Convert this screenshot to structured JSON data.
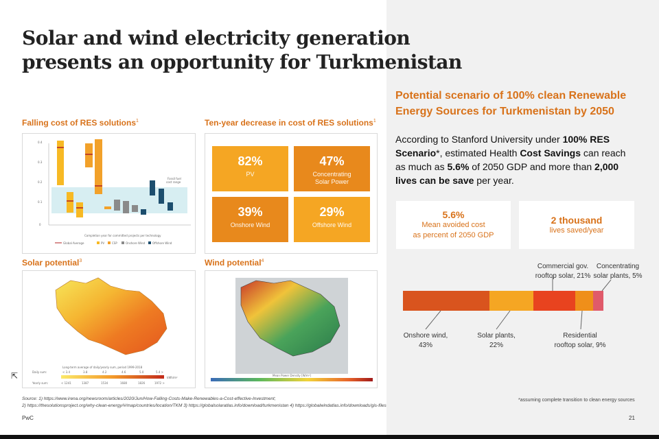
{
  "title": {
    "line1": "Solar and wind electricity generation",
    "line2": "presents an opportunity for Turkmenistan"
  },
  "panels": {
    "cost_falling": {
      "heading": "Falling cost of RES solutions",
      "sup": "1"
    },
    "ten_year": {
      "heading": "Ten-year decrease in cost of RES solutions",
      "sup": "1"
    },
    "solar": {
      "heading": "Solar potential",
      "sup": "3"
    },
    "wind": {
      "heading": "Wind potential",
      "sup": "4"
    }
  },
  "cost_chart": {
    "fossil_label_1": "Fossil fuel",
    "fossil_label_2": "cost range",
    "x_caption": "Completion year for committed projects per technology",
    "legend": [
      "Global Average",
      "PV",
      "CSP",
      "Onshore Wind",
      "Offshore Wind"
    ]
  },
  "tiles": [
    {
      "pct": "82%",
      "label1": "PV",
      "label2": "",
      "color": "#f5a623"
    },
    {
      "pct": "47%",
      "label1": "Concentrating",
      "label2": "Solar Power",
      "color": "#e8891c"
    },
    {
      "pct": "39%",
      "label1": "Onshore Wind",
      "label2": "",
      "color": "#e8891c"
    },
    {
      "pct": "29%",
      "label1": "Offshore Wind",
      "label2": "",
      "color": "#f5a623"
    }
  ],
  "solar_map": {
    "legend_caption": "Long-term average of daily/yearly sum, period 1999-2018",
    "daily_label": "Daily sum:",
    "yearly_label": "Yearly sum:",
    "unit": "kWh/m²",
    "daily_ticks": [
      "< 3.4",
      "3.8",
      "4.2",
      "4.6",
      "5.0",
      "5.4 >"
    ],
    "yearly_ticks": [
      "< 1241",
      "1387",
      "1534",
      "1680",
      "1826",
      "1972 >"
    ]
  },
  "wind_map": {
    "scale_caption": "Mean Power Density [W/m²]"
  },
  "scenario": {
    "title_line1": "Potential scenario of 100% clean Renewable",
    "title_line2": "Energy Sources for Turkmenistan by 2050",
    "body_1": "According to Stanford University under ",
    "body_b1": "100% RES Scenario",
    "body_2": "*, estimated Health ",
    "body_b2": "Cost Savings",
    "body_3": " can reach as much as ",
    "body_b3": "5.6%",
    "body_4": " of 2050 GDP and more than ",
    "body_b4": "2,000 lives can be save",
    "body_5": " per year."
  },
  "kpis": [
    {
      "value": "5.6%",
      "desc1": "Mean avoided cost",
      "desc2": "as percent of 2050 GDP"
    },
    {
      "value": "2 thousand",
      "desc1": "lives saved/year",
      "desc2": ""
    }
  ],
  "mix_bar": {
    "segments": [
      {
        "name": "Onshore wind",
        "pct": 43,
        "color": "#d9541e"
      },
      {
        "name": "Solar plants",
        "pct": 22,
        "color": "#f5a623"
      },
      {
        "name": "Commercial gov. rooftop solar",
        "pct": 21,
        "color": "#e8431f"
      },
      {
        "name": "Residential rooftop solar",
        "pct": 9,
        "color": "#ef8f1a"
      },
      {
        "name": "Concentrating solar plants",
        "pct": 5,
        "color": "#e05a6a"
      }
    ],
    "labels": {
      "onshore": [
        "Onshore wind,",
        "43%"
      ],
      "solar": [
        "Solar plants,",
        "22%"
      ],
      "commercial": [
        "Commercial gov.",
        "rooftop solar, 21%"
      ],
      "residential": [
        "Residential",
        "rooftop solar, 9%"
      ],
      "csp": [
        "Concentrating",
        "solar plants, 5%"
      ]
    }
  },
  "footer": {
    "source_1": "Source: 1) https://www.irena.org/newsroom/articles/2020/Jun/How-Falling-Costs-Make-Renewables-a-Cost-effective-Investment;",
    "source_2": "2) https://thesolutionsproject.org/why-clean-energy/#/map/countries/location/TKM 3) https://globalsolaratlas.info/download/turkmenistan 4) https://globalwindatlas.info/downloads/gis-files",
    "asterisk": "*assuming complete transition to clean energy sources",
    "brand": "PwC",
    "page": "21"
  }
}
